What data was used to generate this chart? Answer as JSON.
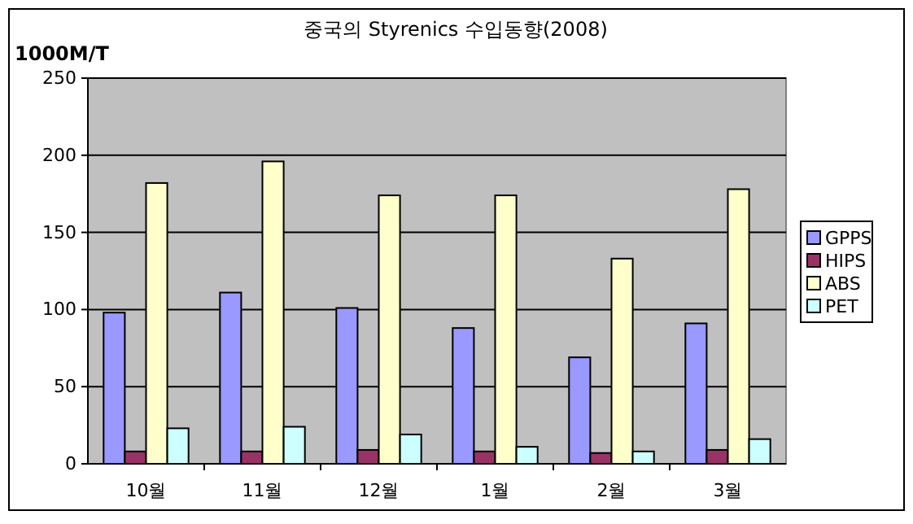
{
  "chart_data": {
    "type": "bar",
    "title": "중국의 Styrenics 수입동향(2008)",
    "ylabel": "1000M/T",
    "categories": [
      "10월",
      "11월",
      "12월",
      "1월",
      "2월",
      "3월"
    ],
    "series": [
      {
        "name": "GPPS",
        "color": "#9999ff",
        "values": [
          98,
          111,
          101,
          88,
          69,
          91
        ]
      },
      {
        "name": "HIPS",
        "color": "#993366",
        "values": [
          8,
          8,
          9,
          8,
          7,
          9
        ]
      },
      {
        "name": "ABS",
        "color": "#ffffcc",
        "values": [
          182,
          196,
          174,
          174,
          133,
          178
        ]
      },
      {
        "name": "PET",
        "color": "#ccffff",
        "values": [
          23,
          24,
          19,
          11,
          8,
          16
        ]
      }
    ],
    "ylim": [
      0,
      250
    ],
    "yticks": [
      0,
      50,
      100,
      150,
      200,
      250
    ],
    "grid": "y",
    "legend": "right"
  }
}
